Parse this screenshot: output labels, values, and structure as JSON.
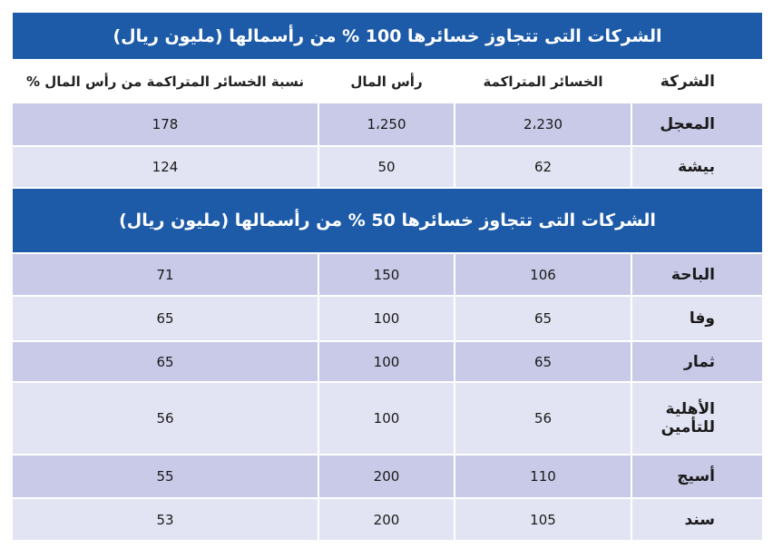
{
  "sections": [
    {
      "title": "الشركات التى تتجاوز خسائرها 100 % من رأسمالها (مليون ريال)",
      "header": [
        "الشركة",
        "الخسائر المتراكمة",
        "رأس المال",
        "نسبة الخسائر المتراكمة من رأس المال %"
      ],
      "rows": [
        [
          "المعجل",
          "2،230",
          "1،250",
          "178"
        ],
        [
          "بيشة",
          "62",
          "50",
          "124"
        ]
      ]
    },
    {
      "title": "الشركات التى تتجاوز خسائرها 50 % من رأسمالها (مليون ريال)",
      "rows": [
        [
          "الباحة",
          "106",
          "150",
          "71"
        ],
        [
          "وفا",
          "65",
          "100",
          "65"
        ],
        [
          "ثمار",
          "65",
          "100",
          "65"
        ],
        [
          "الأهلية للتأمين",
          "56",
          "100",
          "56"
        ],
        [
          "أسيج",
          "110",
          "200",
          "55"
        ],
        [
          "سند",
          "105",
          "200",
          "53"
        ]
      ]
    }
  ]
}
